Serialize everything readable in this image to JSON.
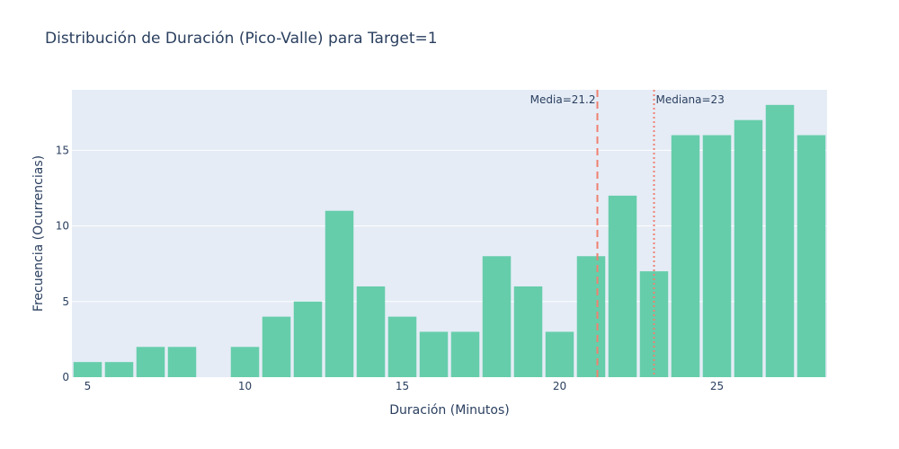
{
  "chart_data": {
    "type": "bar",
    "title": "Distribución de Duración (Pico-Valle) para Target=1",
    "xlabel": "Duración (Minutos)",
    "ylabel": "Frecuencia (Ocurrencias)",
    "x": [
      5,
      6,
      7,
      8,
      9,
      10,
      11,
      12,
      13,
      14,
      15,
      16,
      17,
      18,
      19,
      20,
      21,
      22,
      23,
      24,
      25,
      26,
      27,
      28
    ],
    "values": [
      1,
      1,
      2,
      2,
      0,
      2,
      4,
      5,
      11,
      6,
      4,
      3,
      3,
      8,
      6,
      3,
      8,
      12,
      7,
      16,
      16,
      17,
      18,
      16
    ],
    "xlim": [
      4.5,
      28.5
    ],
    "ylim": [
      0,
      19
    ],
    "xticks": [
      5,
      10,
      15,
      20,
      25
    ],
    "yticks": [
      0,
      5,
      10,
      15
    ],
    "grid": true,
    "bar_color": "#66cdaa",
    "plot_bgcolor": "#e5ecf6",
    "reference_lines": [
      {
        "label": "Media=21.2",
        "x": 21.2,
        "style": "dashed",
        "color": "#f08070"
      },
      {
        "label": "Mediana=23",
        "x": 23,
        "style": "dotted",
        "color": "#f08070"
      }
    ]
  }
}
